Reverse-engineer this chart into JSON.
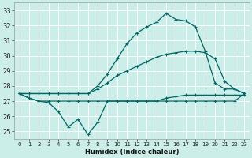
{
  "xlabel": "Humidex (Indice chaleur)",
  "background_color": "#cceee8",
  "grid_color": "#ffffff",
  "line_color": "#006666",
  "xlim": [
    -0.5,
    23.5
  ],
  "ylim": [
    24.5,
    33.5
  ],
  "xticks": [
    0,
    1,
    2,
    3,
    4,
    5,
    6,
    7,
    8,
    9,
    10,
    11,
    12,
    13,
    14,
    15,
    16,
    17,
    18,
    19,
    20,
    21,
    22,
    23
  ],
  "yticks": [
    25,
    26,
    27,
    28,
    29,
    30,
    31,
    32,
    33
  ],
  "series": [
    {
      "x": [
        0,
        1,
        2,
        3,
        4,
        5,
        6,
        7,
        8,
        9,
        10,
        11,
        12,
        13,
        14,
        15,
        16,
        17,
        18,
        19,
        20,
        21,
        22,
        23
      ],
      "y": [
        27.5,
        27.2,
        27.0,
        27.0,
        27.0,
        27.0,
        27.0,
        27.0,
        27.0,
        27.0,
        27.0,
        27.0,
        27.0,
        27.0,
        27.0,
        27.2,
        27.3,
        27.4,
        27.4,
        27.4,
        27.4,
        27.4,
        27.4,
        27.4
      ]
    },
    {
      "x": [
        0,
        1,
        2,
        3,
        4,
        5,
        6,
        7,
        8,
        9,
        10,
        11,
        12,
        13,
        14,
        15,
        16,
        17,
        18,
        19,
        20,
        21,
        22,
        23
      ],
      "y": [
        27.5,
        27.2,
        27.0,
        26.9,
        26.3,
        25.3,
        25.8,
        24.8,
        25.6,
        27.0,
        27.0,
        27.0,
        27.0,
        27.0,
        27.0,
        27.0,
        27.0,
        27.0,
        27.0,
        27.0,
        27.0,
        27.0,
        27.0,
        27.5
      ]
    },
    {
      "x": [
        0,
        1,
        2,
        3,
        4,
        5,
        6,
        7,
        8,
        9,
        10,
        11,
        12,
        13,
        14,
        15,
        16,
        17,
        18,
        19,
        20,
        21,
        22,
        23
      ],
      "y": [
        27.5,
        27.5,
        27.5,
        27.5,
        27.5,
        27.5,
        27.5,
        27.5,
        27.8,
        28.2,
        28.7,
        29.0,
        29.3,
        29.6,
        29.9,
        30.1,
        30.2,
        30.3,
        30.3,
        30.2,
        29.8,
        28.3,
        27.8,
        27.5
      ]
    },
    {
      "x": [
        0,
        1,
        2,
        3,
        4,
        5,
        6,
        7,
        8,
        9,
        10,
        11,
        12,
        13,
        14,
        15,
        16,
        17,
        18,
        19,
        20,
        21,
        22,
        23
      ],
      "y": [
        27.5,
        27.5,
        27.5,
        27.5,
        27.5,
        27.5,
        27.5,
        27.5,
        28.0,
        28.8,
        29.8,
        30.8,
        31.5,
        31.9,
        32.2,
        32.8,
        32.4,
        32.3,
        31.9,
        30.3,
        28.2,
        27.8,
        27.8,
        27.5
      ]
    }
  ]
}
